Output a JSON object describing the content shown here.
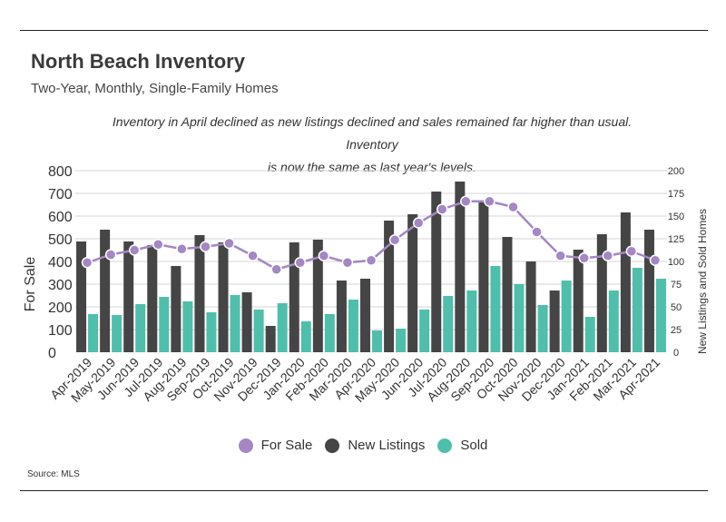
{
  "header": {
    "title": "North Beach Inventory",
    "subtitle": "Two-Year, Monthly, Single-Family Homes",
    "annotation_line1": "Inventory in April declined as new listings declined and sales remained far higher than usual. Inventory",
    "annotation_line2": "is now the same as last year's levels."
  },
  "footer": {
    "source": "Source:  MLS"
  },
  "colors": {
    "for_sale": "#a487c3",
    "new_listings": "#454545",
    "sold": "#4fbfab"
  },
  "chart_data": {
    "type": "bar",
    "title": "North Beach Inventory",
    "categories": [
      "Apr-2019",
      "May-2019",
      "Jun-2019",
      "Jul-2019",
      "Aug-2019",
      "Sep-2019",
      "Oct-2019",
      "Nov-2019",
      "Dec-2019",
      "Jan-2020",
      "Feb-2020",
      "Mar-2020",
      "Apr-2020",
      "May-2020",
      "Jun-2020",
      "Jul-2020",
      "Aug-2020",
      "Sep-2020",
      "Oct-2020",
      "Nov-2020",
      "Dec-2020",
      "Jan-2021",
      "Feb-2021",
      "Mar-2021",
      "Apr-2021"
    ],
    "ylabel_left": "For Sale",
    "ylabel_right": "New Listings and Sold Homes",
    "ylim_left": [
      0,
      800
    ],
    "yticks_left": [
      0,
      100,
      200,
      300,
      400,
      500,
      600,
      700,
      800
    ],
    "ylim_right": [
      0,
      200
    ],
    "yticks_right": [
      0,
      25,
      50,
      75,
      100,
      125,
      150,
      175,
      200
    ],
    "series": [
      {
        "name": "For Sale",
        "type": "line",
        "axis": "left",
        "values": [
          395,
          430,
          450,
          475,
          455,
          465,
          480,
          425,
          365,
          395,
          425,
          395,
          405,
          495,
          570,
          630,
          665,
          665,
          640,
          530,
          425,
          415,
          425,
          445,
          405
        ]
      },
      {
        "name": "New Listings",
        "type": "bar",
        "axis": "right",
        "values": [
          122,
          135,
          122,
          118,
          95,
          129,
          121,
          66,
          29,
          121,
          124,
          79,
          81,
          145,
          152,
          177,
          188,
          166,
          127,
          100,
          68,
          113,
          130,
          154,
          135
        ]
      },
      {
        "name": "Sold",
        "type": "bar",
        "axis": "right",
        "values": [
          42,
          41,
          53,
          61,
          56,
          44,
          63,
          47,
          54,
          34,
          42,
          58,
          24,
          26,
          47,
          62,
          68,
          95,
          75,
          52,
          79,
          39,
          68,
          93,
          81
        ]
      }
    ],
    "legend": [
      "For Sale",
      "New Listings",
      "Sold"
    ],
    "legend_position": "bottom"
  }
}
